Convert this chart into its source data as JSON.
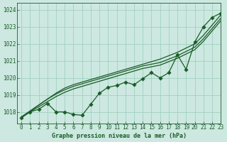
{
  "bg_color": "#cce8e0",
  "grid_color": "#99ccbb",
  "line_color": "#1a5c28",
  "xmin": -0.5,
  "xmax": 23,
  "ymin": 1017.3,
  "ymax": 1024.4,
  "yticks": [
    1018,
    1019,
    1020,
    1021,
    1022,
    1023,
    1024
  ],
  "xticks": [
    0,
    1,
    2,
    3,
    4,
    5,
    6,
    7,
    8,
    9,
    10,
    11,
    12,
    13,
    14,
    15,
    16,
    17,
    18,
    19,
    20,
    21,
    22,
    23
  ],
  "xlabel": "Graphe pression niveau de la mer (hPa)",
  "smooth_line1": [
    1017.7,
    1018.05,
    1018.4,
    1018.75,
    1019.1,
    1019.4,
    1019.6,
    1019.75,
    1019.9,
    1020.05,
    1020.2,
    1020.35,
    1020.5,
    1020.65,
    1020.8,
    1020.95,
    1021.1,
    1021.3,
    1021.5,
    1021.75,
    1022.0,
    1022.5,
    1023.1,
    1023.7
  ],
  "smooth_line2": [
    1017.7,
    1018.05,
    1018.4,
    1018.75,
    1019.05,
    1019.3,
    1019.5,
    1019.65,
    1019.8,
    1019.95,
    1020.1,
    1020.25,
    1020.4,
    1020.55,
    1020.7,
    1020.8,
    1020.9,
    1021.1,
    1021.3,
    1021.55,
    1021.8,
    1022.3,
    1022.9,
    1023.5
  ],
  "smooth_line3": [
    1017.7,
    1018.0,
    1018.3,
    1018.6,
    1018.9,
    1019.15,
    1019.35,
    1019.5,
    1019.65,
    1019.8,
    1019.95,
    1020.1,
    1020.25,
    1020.4,
    1020.55,
    1020.65,
    1020.75,
    1020.95,
    1021.15,
    1021.4,
    1021.65,
    1022.15,
    1022.75,
    1023.35
  ],
  "marker_line": [
    1017.65,
    1018.0,
    1018.15,
    1018.5,
    1018.0,
    1018.0,
    1017.85,
    1017.8,
    1018.45,
    1019.1,
    1019.45,
    1019.55,
    1019.75,
    1019.6,
    1019.95,
    1020.3,
    1020.0,
    1020.3,
    1021.35,
    1020.5,
    1022.1,
    1023.0,
    1023.55,
    1023.8
  ],
  "marker_size": 2.8,
  "line_width": 0.9,
  "tick_fontsize": 5.5,
  "label_fontsize": 6.0
}
